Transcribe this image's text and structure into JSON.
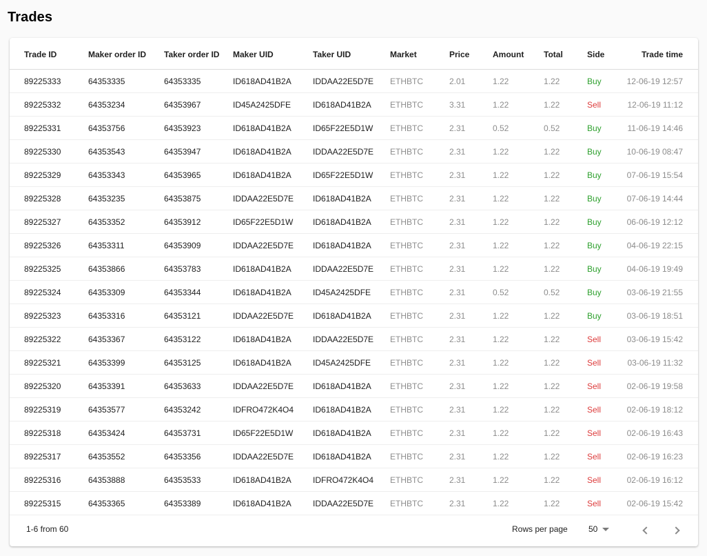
{
  "page": {
    "title": "Trades"
  },
  "table": {
    "columns": {
      "trade_id": "Trade ID",
      "maker_order_id": "Maker order ID",
      "taker_order_id": "Taker order ID",
      "maker_uid": "Maker UID",
      "taker_uid": "Taker UID",
      "market": "Market",
      "price": "Price",
      "amount": "Amount",
      "total": "Total",
      "side": "Side",
      "trade_time": "Trade time"
    },
    "rows": [
      {
        "trade_id": "89225333",
        "maker_order_id": "64353335",
        "taker_order_id": "64353335",
        "maker_uid": "ID618AD41B2A",
        "taker_uid": "IDDAA22E5D7E",
        "market": "ETHBTC",
        "price": "2.01",
        "amount": "1.22",
        "total": "1.22",
        "side": "Buy",
        "trade_time": "12-06-19 12:57"
      },
      {
        "trade_id": "89225332",
        "maker_order_id": "64353234",
        "taker_order_id": "64353967",
        "maker_uid": "ID45A2425DFE",
        "taker_uid": "ID618AD41B2A",
        "market": "ETHBTC",
        "price": "3.31",
        "amount": "1.22",
        "total": "1.22",
        "side": "Sell",
        "trade_time": "12-06-19 11:12"
      },
      {
        "trade_id": "89225331",
        "maker_order_id": "64353756",
        "taker_order_id": "64353923",
        "maker_uid": "ID618AD41B2A",
        "taker_uid": "ID65F22E5D1W",
        "market": "ETHBTC",
        "price": "2.31",
        "amount": "0.52",
        "total": "0.52",
        "side": "Buy",
        "trade_time": "11-06-19 14:46"
      },
      {
        "trade_id": "89225330",
        "maker_order_id": "64353543",
        "taker_order_id": "64353947",
        "maker_uid": "ID618AD41B2A",
        "taker_uid": "IDDAA22E5D7E",
        "market": "ETHBTC",
        "price": "2.31",
        "amount": "1.22",
        "total": "1.22",
        "side": "Buy",
        "trade_time": "10-06-19 08:47"
      },
      {
        "trade_id": "89225329",
        "maker_order_id": "64353343",
        "taker_order_id": "64353965",
        "maker_uid": "ID618AD41B2A",
        "taker_uid": "ID65F22E5D1W",
        "market": "ETHBTC",
        "price": "2.31",
        "amount": "1.22",
        "total": "1.22",
        "side": "Buy",
        "trade_time": "07-06-19 15:54"
      },
      {
        "trade_id": "89225328",
        "maker_order_id": "64353235",
        "taker_order_id": "64353875",
        "maker_uid": "IDDAA22E5D7E",
        "taker_uid": "ID618AD41B2A",
        "market": "ETHBTC",
        "price": "2.31",
        "amount": "1.22",
        "total": "1.22",
        "side": "Buy",
        "trade_time": "07-06-19 14:44"
      },
      {
        "trade_id": "89225327",
        "maker_order_id": "64353352",
        "taker_order_id": "64353912",
        "maker_uid": "ID65F22E5D1W",
        "taker_uid": "ID618AD41B2A",
        "market": "ETHBTC",
        "price": "2.31",
        "amount": "1.22",
        "total": "1.22",
        "side": "Buy",
        "trade_time": "06-06-19 12:12"
      },
      {
        "trade_id": "89225326",
        "maker_order_id": "64353311",
        "taker_order_id": "64353909",
        "maker_uid": "IDDAA22E5D7E",
        "taker_uid": "ID618AD41B2A",
        "market": "ETHBTC",
        "price": "2.31",
        "amount": "1.22",
        "total": "1.22",
        "side": "Buy",
        "trade_time": "04-06-19 22:15"
      },
      {
        "trade_id": "89225325",
        "maker_order_id": "64353866",
        "taker_order_id": "64353783",
        "maker_uid": "ID618AD41B2A",
        "taker_uid": "IDDAA22E5D7E",
        "market": "ETHBTC",
        "price": "2.31",
        "amount": "1.22",
        "total": "1.22",
        "side": "Buy",
        "trade_time": "04-06-19 19:49"
      },
      {
        "trade_id": "89225324",
        "maker_order_id": "64353309",
        "taker_order_id": "64353344",
        "maker_uid": "ID618AD41B2A",
        "taker_uid": "ID45A2425DFE",
        "market": "ETHBTC",
        "price": "2.31",
        "amount": "0.52",
        "total": "0.52",
        "side": "Buy",
        "trade_time": "03-06-19 21:55"
      },
      {
        "trade_id": "89225323",
        "maker_order_id": "64353316",
        "taker_order_id": "64353121",
        "maker_uid": "IDDAA22E5D7E",
        "taker_uid": "ID618AD41B2A",
        "market": "ETHBTC",
        "price": "2.31",
        "amount": "1.22",
        "total": "1.22",
        "side": "Buy",
        "trade_time": "03-06-19 18:51"
      },
      {
        "trade_id": "89225322",
        "maker_order_id": "64353367",
        "taker_order_id": "64353122",
        "maker_uid": "ID618AD41B2A",
        "taker_uid": "IDDAA22E5D7E",
        "market": "ETHBTC",
        "price": "2.31",
        "amount": "1.22",
        "total": "1.22",
        "side": "Sell",
        "trade_time": "03-06-19 15:42"
      },
      {
        "trade_id": "89225321",
        "maker_order_id": "64353399",
        "taker_order_id": "64353125",
        "maker_uid": "ID618AD41B2A",
        "taker_uid": "ID45A2425DFE",
        "market": "ETHBTC",
        "price": "2.31",
        "amount": "1.22",
        "total": "1.22",
        "side": "Sell",
        "trade_time": "03-06-19 11:32"
      },
      {
        "trade_id": "89225320",
        "maker_order_id": "64353391",
        "taker_order_id": "64353633",
        "maker_uid": "IDDAA22E5D7E",
        "taker_uid": "ID618AD41B2A",
        "market": "ETHBTC",
        "price": "2.31",
        "amount": "1.22",
        "total": "1.22",
        "side": "Sell",
        "trade_time": "02-06-19 19:58"
      },
      {
        "trade_id": "89225319",
        "maker_order_id": "64353577",
        "taker_order_id": "64353242",
        "maker_uid": "IDFRO472K4O4",
        "taker_uid": "ID618AD41B2A",
        "market": "ETHBTC",
        "price": "2.31",
        "amount": "1.22",
        "total": "1.22",
        "side": "Sell",
        "trade_time": "02-06-19 18:12"
      },
      {
        "trade_id": "89225318",
        "maker_order_id": "64353424",
        "taker_order_id": "64353731",
        "maker_uid": "ID65F22E5D1W",
        "taker_uid": "ID618AD41B2A",
        "market": "ETHBTC",
        "price": "2.31",
        "amount": "1.22",
        "total": "1.22",
        "side": "Sell",
        "trade_time": "02-06-19 16:43"
      },
      {
        "trade_id": "89225317",
        "maker_order_id": "64353552",
        "taker_order_id": "64353356",
        "maker_uid": "IDDAA22E5D7E",
        "taker_uid": "ID618AD41B2A",
        "market": "ETHBTC",
        "price": "2.31",
        "amount": "1.22",
        "total": "1.22",
        "side": "Sell",
        "trade_time": "02-06-19 16:23"
      },
      {
        "trade_id": "89225316",
        "maker_order_id": "64353888",
        "taker_order_id": "64353533",
        "maker_uid": "ID618AD41B2A",
        "taker_uid": "IDFRO472K4O4",
        "market": "ETHBTC",
        "price": "2.31",
        "amount": "1.22",
        "total": "1.22",
        "side": "Sell",
        "trade_time": "02-06-19 16:12"
      },
      {
        "trade_id": "89225315",
        "maker_order_id": "64353365",
        "taker_order_id": "64353389",
        "maker_uid": "ID618AD41B2A",
        "taker_uid": "IDDAA22E5D7E",
        "market": "ETHBTC",
        "price": "2.31",
        "amount": "1.22",
        "total": "1.22",
        "side": "Sell",
        "trade_time": "02-06-19 15:42"
      }
    ]
  },
  "pagination": {
    "range_text": "1-6 from 60",
    "rows_per_page_label": "Rows per page",
    "rows_per_page_value": "50",
    "prev_icon": "chevron-left-icon",
    "next_icon": "chevron-right-icon"
  },
  "colors": {
    "buy": "#2ea02e",
    "sell": "#dd3b3b",
    "muted": "#8c8c8c"
  }
}
